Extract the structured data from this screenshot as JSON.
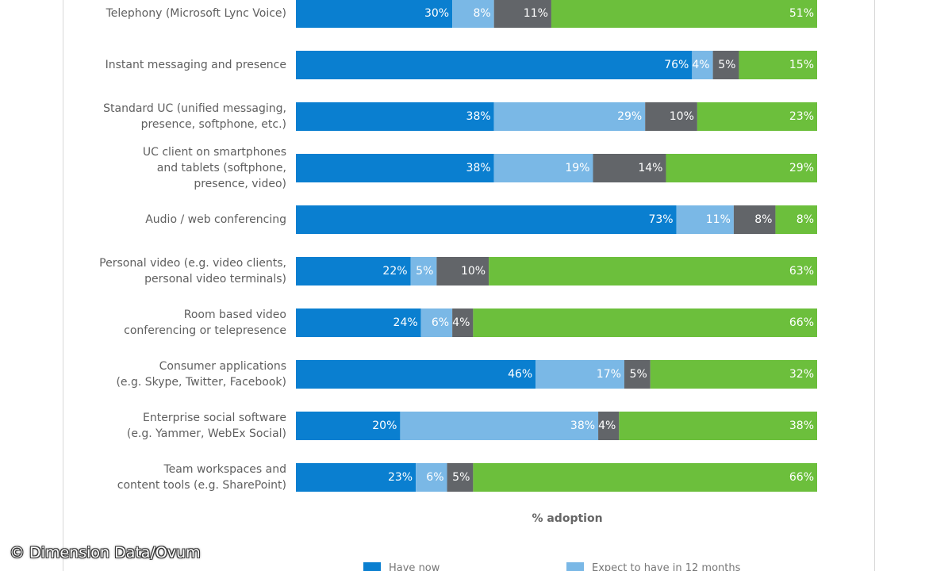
{
  "chart_data": {
    "type": "bar",
    "orientation": "horizontal",
    "stacked": true,
    "xlabel": "% adoption",
    "categories": [
      [
        "Telephony (Microsoft Lync Voice)"
      ],
      [
        "Instant messaging and presence"
      ],
      [
        "Standard UC (unified messaging,",
        "presence, softphone, etc.)"
      ],
      [
        "UC client on smartphones",
        "and tablets (softphone,",
        "presence, video)"
      ],
      [
        "Audio / web conferencing"
      ],
      [
        "Personal video (e.g. video clients,",
        "personal video terminals)"
      ],
      [
        "Room based video",
        "conferencing or telepresence"
      ],
      [
        "Consumer applications",
        "(e.g. Skype, Twitter, Facebook)"
      ],
      [
        "Enterprise social software",
        "(e.g. Yammer, WebEx Social)"
      ],
      [
        "Team workspaces and",
        "content tools (e.g. SharePoint)"
      ]
    ],
    "series": [
      {
        "name": "Have now",
        "color": "#0a7fd0",
        "values": [
          30,
          76,
          38,
          38,
          73,
          22,
          24,
          46,
          20,
          23
        ]
      },
      {
        "name": "Expect to have in 12 months",
        "color": "#7ab8e6",
        "values": [
          8,
          4,
          29,
          19,
          11,
          5,
          6,
          17,
          38,
          6
        ]
      },
      {
        "name": "",
        "color": "#626569",
        "values": [
          11,
          5,
          10,
          14,
          8,
          10,
          4,
          5,
          4,
          5
        ]
      },
      {
        "name": "",
        "color": "#6cbf3c",
        "values": [
          51,
          15,
          23,
          29,
          8,
          63,
          66,
          32,
          38,
          66
        ]
      }
    ]
  },
  "legend": {
    "items": [
      {
        "label": "Have now",
        "color": "#0a7fd0"
      },
      {
        "label": "Expect to have in 12 months",
        "color": "#7ab8e6"
      }
    ]
  },
  "watermark": "© Dimension Data/Ovum"
}
